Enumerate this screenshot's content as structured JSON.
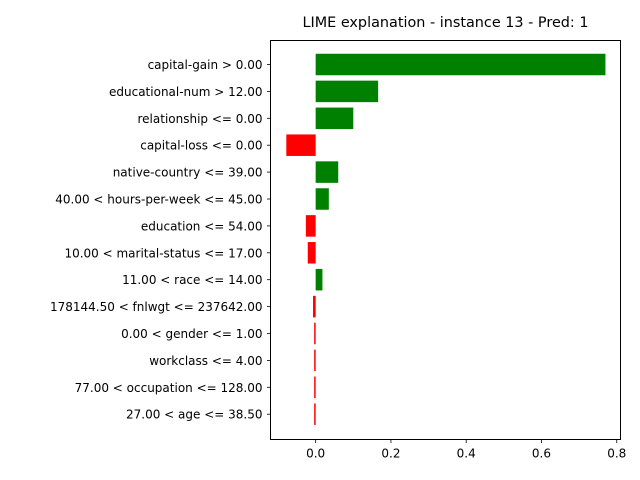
{
  "chart_data": {
    "type": "bar",
    "orientation": "horizontal",
    "title": "LIME explanation - instance 13 - Pred: 1",
    "xlabel": "",
    "ylabel": "",
    "xlim": [
      -0.12,
      0.81
    ],
    "xticks": [
      0.0,
      0.2,
      0.4,
      0.6,
      0.8
    ],
    "xtick_labels": [
      "0.0",
      "0.2",
      "0.4",
      "0.6",
      "0.8"
    ],
    "grid": false,
    "positive_color": "#008000",
    "negative_color": "#ff0000",
    "categories": [
      "capital-gain > 0.00",
      "educational-num > 12.00",
      "relationship <= 0.00",
      "capital-loss <= 0.00",
      "native-country <= 39.00",
      "40.00 < hours-per-week <= 45.00",
      "education <= 54.00",
      "10.00 < marital-status <= 17.00",
      "11.00 < race <= 14.00",
      "178144.50 < fnlwgt <= 237642.00",
      "0.00 < gender <= 1.00",
      "workclass <= 4.00",
      "77.00 < occupation <= 128.00",
      "27.00 < age <= 38.50"
    ],
    "values": [
      0.77,
      0.166,
      0.1,
      -0.078,
      0.06,
      0.035,
      -0.026,
      -0.021,
      0.018,
      -0.007,
      -0.004,
      -0.004,
      -0.004,
      -0.004
    ]
  }
}
